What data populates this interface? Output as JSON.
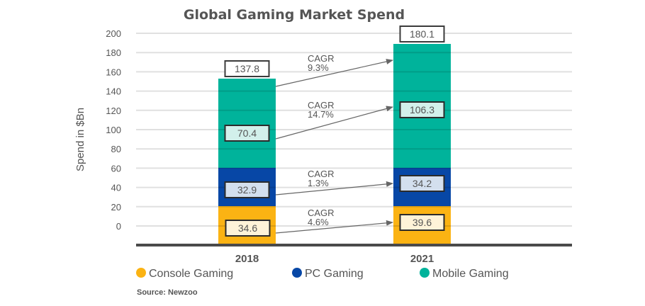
{
  "chart_data": {
    "type": "bar",
    "stacked": true,
    "title": "Global Gaming Market Spend",
    "xlabel": "",
    "ylabel": "Spend in $Bn",
    "ylim": [
      0,
      200
    ],
    "yticks": [
      200,
      180,
      160,
      140,
      120,
      100,
      80,
      60,
      40,
      20,
      0
    ],
    "grid": true,
    "categories": [
      "2018",
      "2021"
    ],
    "series": [
      {
        "name": "Console Gaming",
        "color": "#FBB313",
        "label_bg": "#FEF3D8",
        "values": [
          34.6,
          39.6
        ]
      },
      {
        "name": "PC Gaming",
        "color": "#0747A6",
        "label_bg": "#D3DFEE",
        "values": [
          32.9,
          34.2
        ]
      },
      {
        "name": "Mobile Gaming",
        "color": "#00B39B",
        "label_bg": "#D2F0EB",
        "values": [
          70.4,
          106.3
        ]
      }
    ],
    "totals": [
      "137.8",
      "180.1"
    ],
    "segment_labels": [
      [
        "34.6",
        "32.9",
        "70.4"
      ],
      [
        "39.6",
        "34.2",
        "106.3"
      ]
    ],
    "annotations": [
      {
        "label": "CAGR",
        "value": "4.6%",
        "series": "Console Gaming"
      },
      {
        "label": "CAGR",
        "value": "1.3%",
        "series": "PC Gaming"
      },
      {
        "label": "CAGR",
        "value": "14.7%",
        "series": "Mobile Gaming"
      },
      {
        "label": "CAGR",
        "value": "9.3%",
        "series": "Total"
      }
    ],
    "legend_position": "bottom",
    "source": "Source: Newzoo"
  }
}
